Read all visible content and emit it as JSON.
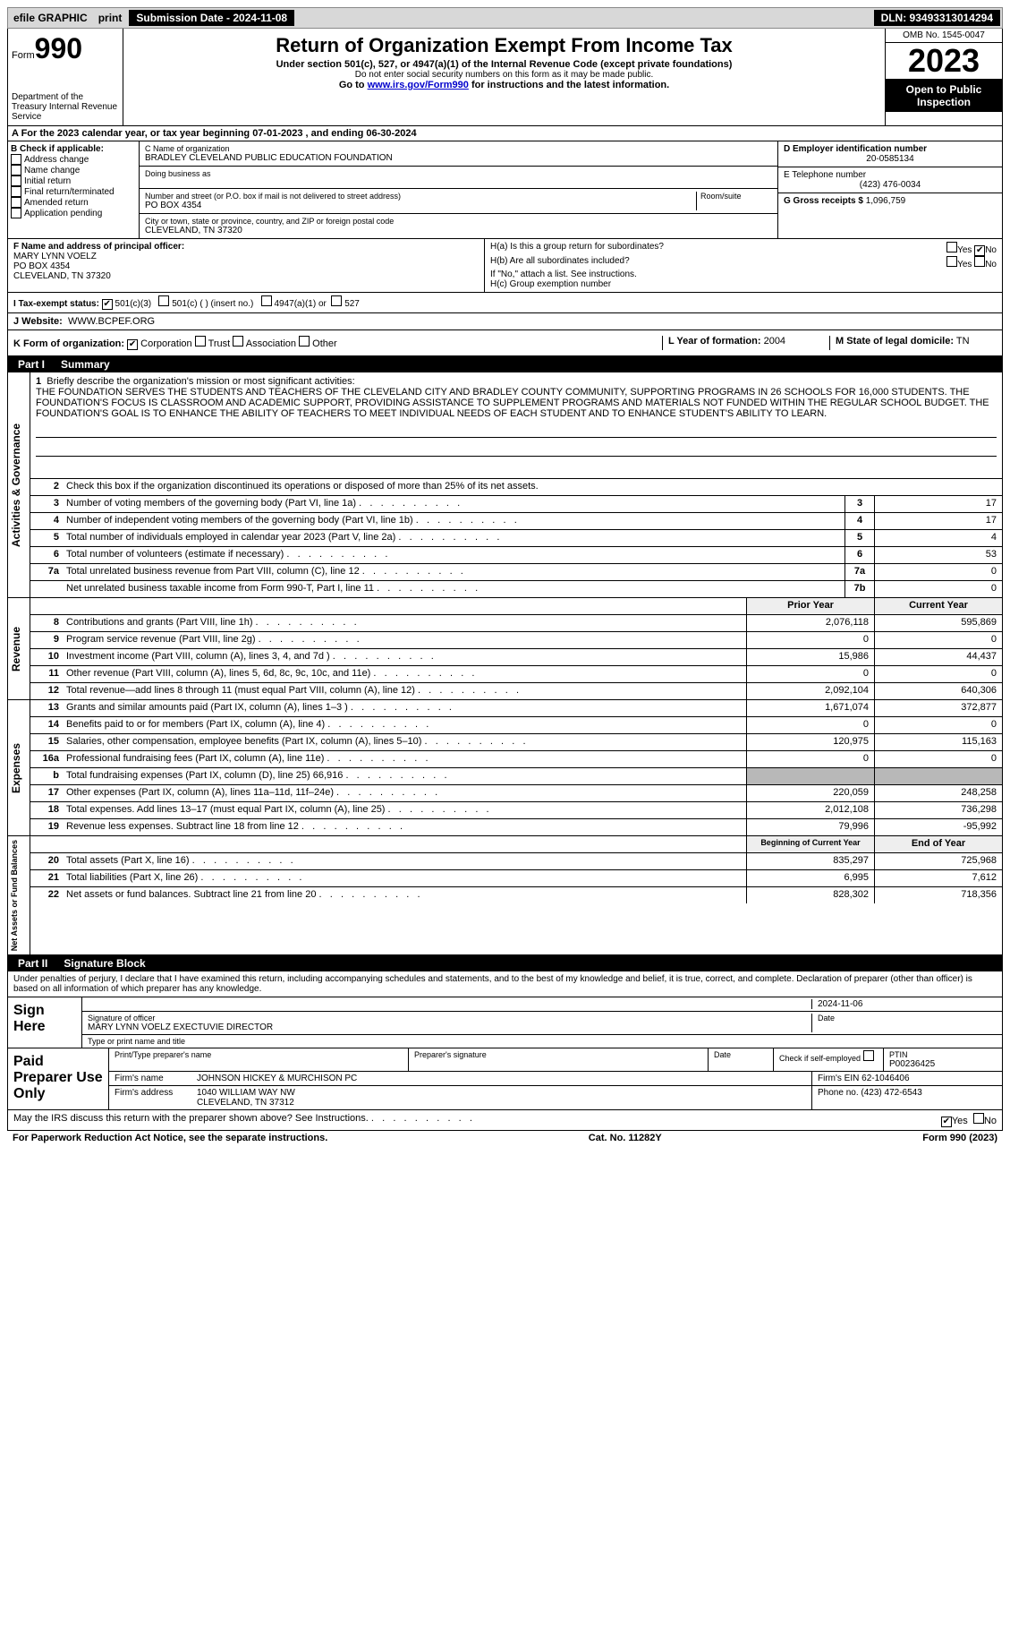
{
  "top": {
    "efile": "efile GRAPHIC",
    "print": "print",
    "submission": "Submission Date - 2024-11-08",
    "dln": "DLN: 93493313014294"
  },
  "header": {
    "form_prefix": "Form",
    "form_number": "990",
    "dept": "Department of the Treasury Internal Revenue Service",
    "title": "Return of Organization Exempt From Income Tax",
    "sub1": "Under section 501(c), 527, or 4947(a)(1) of the Internal Revenue Code (except private foundations)",
    "sub2": "Do not enter social security numbers on this form as it may be made public.",
    "sub3_pre": "Go to ",
    "sub3_link": "www.irs.gov/Form990",
    "sub3_post": " for instructions and the latest information.",
    "omb": "OMB No. 1545-0047",
    "year": "2023",
    "open": "Open to Public Inspection"
  },
  "lineA": "A   For the 2023 calendar year, or tax year beginning 07-01-2023   , and ending 06-30-2024",
  "sectionB": {
    "label": "B Check if applicable:",
    "items": [
      "Address change",
      "Name change",
      "Initial return",
      "Final return/terminated",
      "Amended return",
      "Application pending"
    ]
  },
  "sectionC": {
    "name_label": "C Name of organization",
    "name": "BRADLEY CLEVELAND PUBLIC EDUCATION FOUNDATION",
    "dba_label": "Doing business as",
    "addr_label": "Number and street (or P.O. box if mail is not delivered to street address)",
    "room_label": "Room/suite",
    "addr": "PO BOX 4354",
    "city_label": "City or town, state or province, country, and ZIP or foreign postal code",
    "city": "CLEVELAND, TN  37320"
  },
  "sectionD": {
    "label": "D Employer identification number",
    "value": "20-0585134"
  },
  "sectionE": {
    "label": "E Telephone number",
    "value": "(423) 476-0034"
  },
  "sectionG": {
    "label": "G Gross receipts $",
    "value": "1,096,759"
  },
  "sectionF": {
    "label": "F  Name and address of principal officer:",
    "name": "MARY LYNN VOELZ",
    "addr1": "PO BOX 4354",
    "addr2": "CLEVELAND, TN  37320"
  },
  "sectionH": {
    "ha_label": "H(a)  Is this a group return for subordinates?",
    "hb_label": "H(b)  Are all subordinates included?",
    "hb_note": "If \"No,\" attach a list. See instructions.",
    "hc_label": "H(c)  Group exemption number",
    "yes": "Yes",
    "no": "No"
  },
  "sectionI": {
    "label": "I   Tax-exempt status:",
    "opt1": "501(c)(3)",
    "opt2": "501(c) (  ) (insert no.)",
    "opt3": "4947(a)(1) or",
    "opt4": "527"
  },
  "sectionJ": {
    "label": "J   Website:",
    "value": "WWW.BCPEF.ORG"
  },
  "sectionK": {
    "label": "K Form of organization:",
    "opts": [
      "Corporation",
      "Trust",
      "Association",
      "Other"
    ]
  },
  "sectionL": {
    "label": "L Year of formation:",
    "value": "2004"
  },
  "sectionM": {
    "label": "M State of legal domicile:",
    "value": "TN"
  },
  "part1": {
    "partlabel": "Part I",
    "title": "Summary",
    "line1_label": "Briefly describe the organization's mission or most significant activities:",
    "mission": "THE FOUNDATION SERVES THE STUDENTS AND TEACHERS OF THE CLEVELAND CITY AND BRADLEY COUNTY COMMUNITY, SUPPORTING PROGRAMS IN 26 SCHOOLS FOR 16,000 STUDENTS. THE FOUNDATION'S FOCUS IS CLASSROOM AND ACADEMIC SUPPORT, PROVIDING ASSISTANCE TO SUPPLEMENT PROGRAMS AND MATERIALS NOT FUNDED WITHIN THE REGULAR SCHOOL BUDGET. THE FOUNDATION'S GOAL IS TO ENHANCE THE ABILITY OF TEACHERS TO MEET INDIVIDUAL NEEDS OF EACH STUDENT AND TO ENHANCE STUDENT'S ABILITY TO LEARN.",
    "line2": "Check this box      if the organization discontinued its operations or disposed of more than 25% of its net assets.",
    "rows_ag": [
      {
        "n": "3",
        "label": "Number of voting members of the governing body (Part VI, line 1a)",
        "box": "3",
        "val": "17"
      },
      {
        "n": "4",
        "label": "Number of independent voting members of the governing body (Part VI, line 1b)",
        "box": "4",
        "val": "17"
      },
      {
        "n": "5",
        "label": "Total number of individuals employed in calendar year 2023 (Part V, line 2a)",
        "box": "5",
        "val": "4"
      },
      {
        "n": "6",
        "label": "Total number of volunteers (estimate if necessary)",
        "box": "6",
        "val": "53"
      },
      {
        "n": "7a",
        "label": "Total unrelated business revenue from Part VIII, column (C), line 12",
        "box": "7a",
        "val": "0"
      },
      {
        "n": "",
        "label": "Net unrelated business taxable income from Form 990-T, Part I, line 11",
        "box": "7b",
        "val": "0"
      }
    ],
    "col_prior": "Prior Year",
    "col_current": "Current Year",
    "rows_rev": [
      {
        "n": "8",
        "label": "Contributions and grants (Part VIII, line 1h)",
        "prior": "2,076,118",
        "curr": "595,869"
      },
      {
        "n": "9",
        "label": "Program service revenue (Part VIII, line 2g)",
        "prior": "0",
        "curr": "0"
      },
      {
        "n": "10",
        "label": "Investment income (Part VIII, column (A), lines 3, 4, and 7d )",
        "prior": "15,986",
        "curr": "44,437"
      },
      {
        "n": "11",
        "label": "Other revenue (Part VIII, column (A), lines 5, 6d, 8c, 9c, 10c, and 11e)",
        "prior": "0",
        "curr": "0"
      },
      {
        "n": "12",
        "label": "Total revenue—add lines 8 through 11 (must equal Part VIII, column (A), line 12)",
        "prior": "2,092,104",
        "curr": "640,306"
      }
    ],
    "rows_exp": [
      {
        "n": "13",
        "label": "Grants and similar amounts paid (Part IX, column (A), lines 1–3 )",
        "prior": "1,671,074",
        "curr": "372,877"
      },
      {
        "n": "14",
        "label": "Benefits paid to or for members (Part IX, column (A), line 4)",
        "prior": "0",
        "curr": "0"
      },
      {
        "n": "15",
        "label": "Salaries, other compensation, employee benefits (Part IX, column (A), lines 5–10)",
        "prior": "120,975",
        "curr": "115,163"
      },
      {
        "n": "16a",
        "label": "Professional fundraising fees (Part IX, column (A), line 11e)",
        "prior": "0",
        "curr": "0"
      },
      {
        "n": "b",
        "label": "Total fundraising expenses (Part IX, column (D), line 25) 66,916",
        "prior": "",
        "curr": "",
        "shade": true
      },
      {
        "n": "17",
        "label": "Other expenses (Part IX, column (A), lines 11a–11d, 11f–24e)",
        "prior": "220,059",
        "curr": "248,258"
      },
      {
        "n": "18",
        "label": "Total expenses. Add lines 13–17 (must equal Part IX, column (A), line 25)",
        "prior": "2,012,108",
        "curr": "736,298"
      },
      {
        "n": "19",
        "label": "Revenue less expenses. Subtract line 18 from line 12",
        "prior": "79,996",
        "curr": "-95,992"
      }
    ],
    "col_begin": "Beginning of Current Year",
    "col_end": "End of Year",
    "rows_na": [
      {
        "n": "20",
        "label": "Total assets (Part X, line 16)",
        "prior": "835,297",
        "curr": "725,968"
      },
      {
        "n": "21",
        "label": "Total liabilities (Part X, line 26)",
        "prior": "6,995",
        "curr": "7,612"
      },
      {
        "n": "22",
        "label": "Net assets or fund balances. Subtract line 21 from line 20",
        "prior": "828,302",
        "curr": "718,356"
      }
    ],
    "vlabels": {
      "ag": "Activities & Governance",
      "rev": "Revenue",
      "exp": "Expenses",
      "na": "Net Assets or Fund Balances"
    }
  },
  "part2": {
    "partlabel": "Part II",
    "title": "Signature Block",
    "intro": "Under penalties of perjury, I declare that I have examined this return, including accompanying schedules and statements, and to the best of my knowledge and belief, it is true, correct, and complete. Declaration of preparer (other than officer) is based on all information of which preparer has any knowledge.",
    "sign_here": "Sign Here",
    "sig_date": "2024-11-06",
    "sig_officer_label": "Signature of officer",
    "sig_officer": "MARY LYNN VOELZ  EXECTUVIE DIRECTOR",
    "sig_name_label": "Type or print name and title",
    "date_label": "Date",
    "paid_prep": "Paid Preparer Use Only",
    "prep_name_label": "Print/Type preparer's name",
    "prep_sig_label": "Preparer's signature",
    "check_if": "Check        if self-employed",
    "ptin_label": "PTIN",
    "ptin": "P00236425",
    "firm_name_label": "Firm's name",
    "firm_name": "JOHNSON HICKEY & MURCHISON PC",
    "firm_ein_label": "Firm's EIN",
    "firm_ein": "62-1046406",
    "firm_addr_label": "Firm's address",
    "firm_addr": "1040 WILLIAM WAY NW",
    "firm_city": "CLEVELAND, TN  37312",
    "phone_label": "Phone no.",
    "phone": "(423) 472-6543",
    "discuss": "May the IRS discuss this return with the preparer shown above? See Instructions.",
    "yes": "Yes",
    "no": "No"
  },
  "footer": {
    "left": "For Paperwork Reduction Act Notice, see the separate instructions.",
    "mid": "Cat. No. 11282Y",
    "right": "Form 990 (2023)"
  }
}
